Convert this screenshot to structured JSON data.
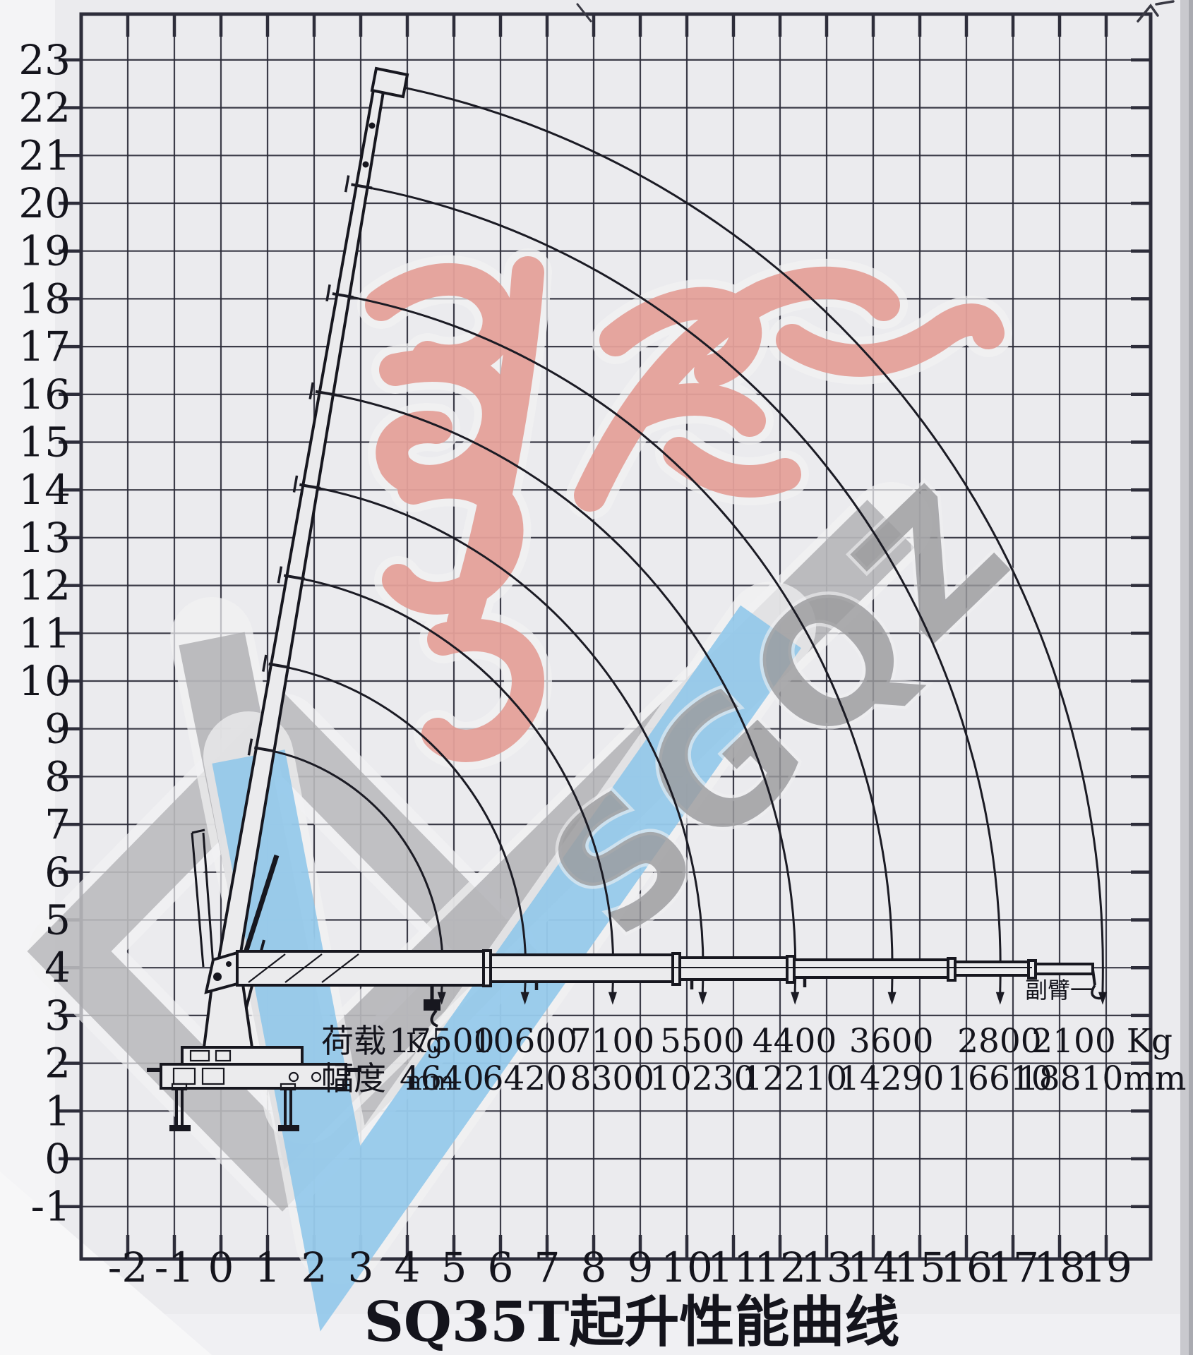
{
  "page": {
    "title": "SQ35T起升性能曲线"
  },
  "watermark": {
    "letters": "SGQZ",
    "red_color": "#e2928a",
    "blue_color": "#8cc6ea",
    "gray_color": "#a6a6aa"
  },
  "load_table": {
    "load_label": "荷载",
    "load_unit": "Kg",
    "radius_label": "幅度",
    "radius_unit": "mm",
    "loads_kg": [
      "17500",
      "10600",
      "7100",
      "5500",
      "4400",
      "3600",
      "2800",
      "2100"
    ],
    "radii_mm": [
      "4640",
      "6420",
      "8300",
      "10230",
      "12210",
      "14290",
      "16610",
      "18810"
    ],
    "last_load_suffix": " Kg",
    "last_radius_suffix": "mm"
  },
  "jib_label": "副臂一",
  "chart_data": {
    "type": "line",
    "title": "SQ35T起升性能曲线",
    "x_axis": {
      "tick_labels": [
        -2,
        -1,
        0,
        1,
        2,
        3,
        4,
        5,
        6,
        7,
        8,
        9,
        10,
        11,
        12,
        13,
        14,
        15,
        16,
        17,
        18,
        19
      ],
      "border_range_m": [
        -3.0,
        19.95
      ],
      "grid": true,
      "unit": "m"
    },
    "y_axis": {
      "tick_labels": [
        23,
        22,
        21,
        20,
        19,
        18,
        17,
        16,
        15,
        14,
        13,
        12,
        11,
        10,
        9,
        8,
        7,
        6,
        5,
        4,
        3,
        2,
        1,
        0,
        -1
      ],
      "border_range_m": [
        -2.1,
        23.96
      ],
      "grid": true,
      "unit": "m"
    },
    "series": [
      {
        "load_kg": 17500,
        "radius_mm": 4640
      },
      {
        "load_kg": 10600,
        "radius_mm": 6420
      },
      {
        "load_kg": 7100,
        "radius_mm": 8300
      },
      {
        "load_kg": 5500,
        "radius_mm": 10230
      },
      {
        "load_kg": 4400,
        "radius_mm": 12210
      },
      {
        "load_kg": 3600,
        "radius_mm": 14290
      },
      {
        "load_kg": 2800,
        "radius_mm": 16610
      },
      {
        "load_kg": 2100,
        "radius_mm": 18810
      }
    ],
    "boom_pivot_m": [
      0.12,
      4.0
    ],
    "boom_max_angle_deg": 80,
    "legend": "none"
  }
}
